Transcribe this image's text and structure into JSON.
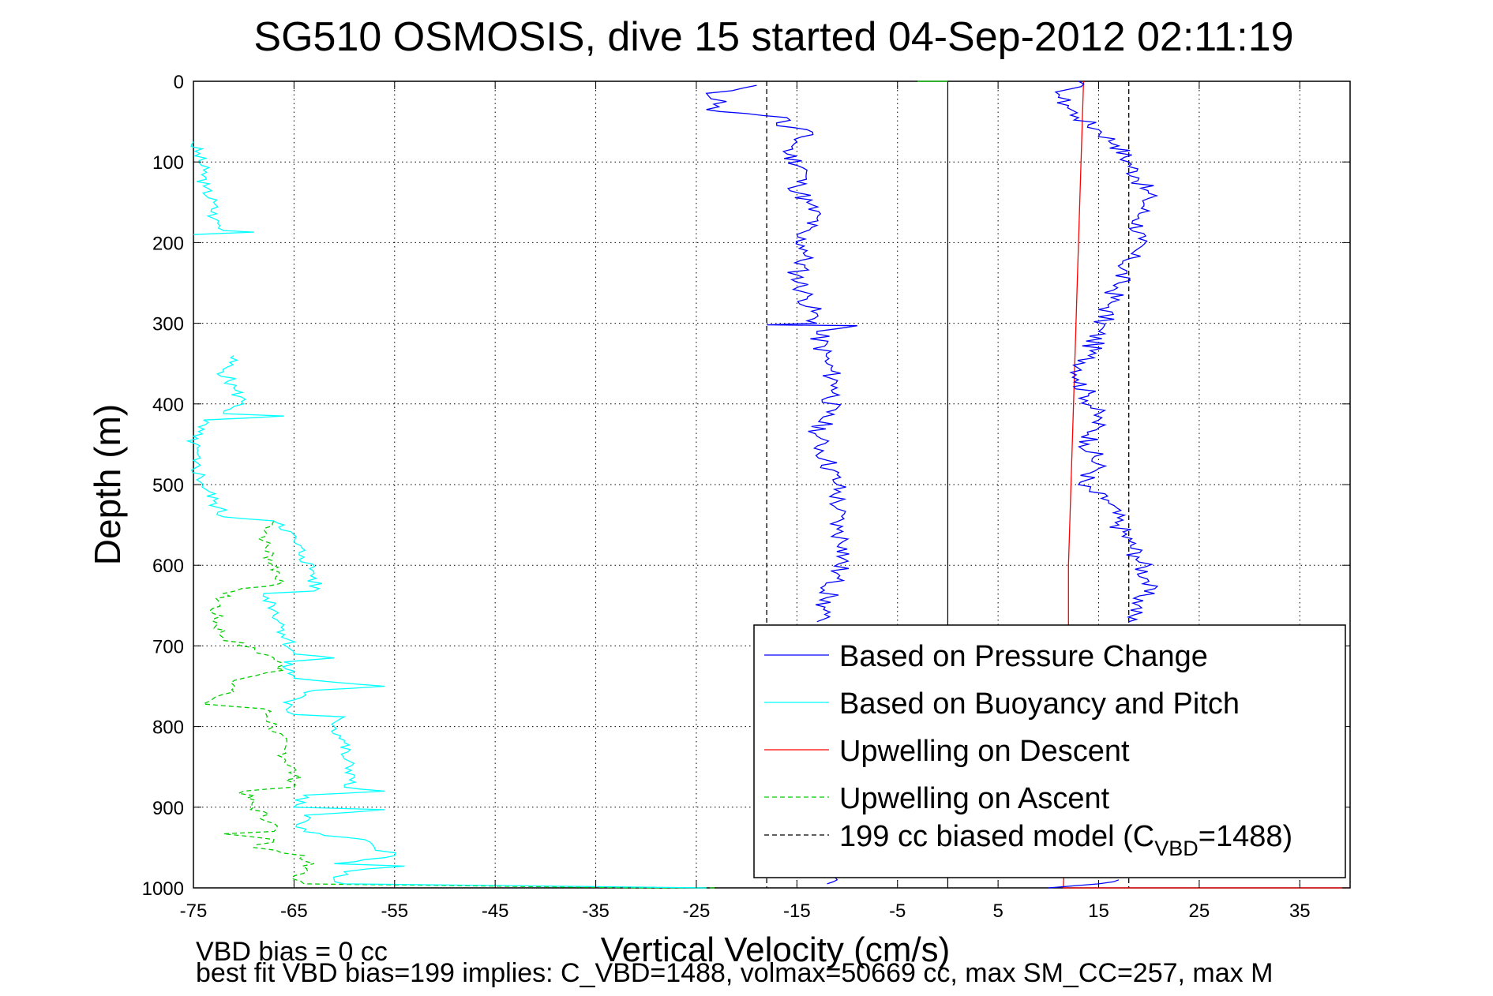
{
  "chart_data": {
    "type": "line",
    "title": "SG510 OSMOSIS, dive 15 started 04-Sep-2012 02:11:19",
    "xlabel": "Vertical Velocity (cm/s)",
    "ylabel": "Depth (m)",
    "xlim": [
      -75,
      40
    ],
    "ylim": [
      1000,
      0
    ],
    "y_reversed": true,
    "grid": true,
    "x_ticks": [
      -75,
      -65,
      -55,
      -45,
      -35,
      -25,
      -15,
      -5,
      5,
      15,
      25,
      35
    ],
    "y_ticks": [
      0,
      100,
      200,
      300,
      400,
      500,
      600,
      700,
      800,
      900,
      1000
    ],
    "reference_line_x": 0,
    "legend_position": "bottom-right",
    "footnotes": [
      "VBD bias = 0 cc",
      "best fit VBD bias=199 implies: C_VBD=1488, volmax=50669 cc, max SM_CC=257, max M"
    ],
    "series": [
      {
        "name": "Based on Pressure Change",
        "color": "#0000ff",
        "style": "solid",
        "points": [
          [
            -19,
            5
          ],
          [
            -24,
            15
          ],
          [
            -22,
            25
          ],
          [
            -24,
            35
          ],
          [
            -20,
            40
          ],
          [
            -16,
            45
          ],
          [
            -17,
            55
          ],
          [
            -14,
            60
          ],
          [
            -15,
            75
          ],
          [
            -16,
            90
          ],
          [
            -14,
            110
          ],
          [
            -15,
            130
          ],
          [
            -14,
            150
          ],
          [
            -13,
            170
          ],
          [
            -15,
            190
          ],
          [
            -14,
            210
          ],
          [
            -15,
            240
          ],
          [
            -14,
            270
          ],
          [
            -13,
            300
          ],
          [
            -18,
            302
          ],
          [
            -9,
            303
          ],
          [
            -13,
            310
          ],
          [
            -12,
            350
          ],
          [
            -11,
            380
          ],
          [
            -12,
            410
          ],
          [
            -13,
            440
          ],
          [
            -12,
            470
          ],
          [
            -11,
            500
          ],
          [
            -11,
            530
          ],
          [
            -11,
            555
          ],
          [
            -10,
            580
          ],
          [
            -11,
            610
          ],
          [
            -12,
            640
          ],
          [
            -13,
            670
          ],
          [
            -12,
            985
          ],
          [
            -11,
            990
          ],
          [
            -12,
            995
          ]
        ],
        "points_ascent": [
          [
            13,
            0
          ],
          [
            12,
            10
          ],
          [
            11,
            20
          ],
          [
            12,
            30
          ],
          [
            13,
            45
          ],
          [
            15,
            60
          ],
          [
            17,
            80
          ],
          [
            18,
            100
          ],
          [
            19,
            120
          ],
          [
            20,
            145
          ],
          [
            19,
            170
          ],
          [
            19,
            195
          ],
          [
            18,
            220
          ],
          [
            17,
            250
          ],
          [
            16,
            280
          ],
          [
            15,
            310
          ],
          [
            14,
            340
          ],
          [
            13,
            370
          ],
          [
            14,
            390
          ],
          [
            15,
            420
          ],
          [
            14,
            450
          ],
          [
            15,
            480
          ],
          [
            13,
            500
          ],
          [
            16,
            520
          ],
          [
            17,
            550
          ],
          [
            18,
            570
          ],
          [
            19,
            590
          ],
          [
            20,
            620
          ],
          [
            19,
            650
          ],
          [
            18,
            670
          ],
          [
            17,
            990
          ],
          [
            15,
            995
          ],
          [
            10,
            1000
          ]
        ]
      },
      {
        "name": "Based on Buoyancy and Pitch",
        "color": "#00ffff",
        "style": "solid",
        "points": [
          [
            -75,
            75
          ],
          [
            -74,
            110
          ],
          [
            -74,
            130
          ],
          [
            -73,
            150
          ],
          [
            -73,
            170
          ],
          [
            -72,
            185
          ],
          [
            -69,
            187
          ],
          [
            -75,
            190
          ],
          [
            -71,
            340
          ],
          [
            -72,
            360
          ],
          [
            -71,
            380
          ],
          [
            -70,
            400
          ],
          [
            -72,
            412
          ],
          [
            -66,
            415
          ],
          [
            -74,
            420
          ],
          [
            -75,
            440
          ],
          [
            -75,
            470
          ],
          [
            -74,
            500
          ],
          [
            -73,
            520
          ],
          [
            -72,
            540
          ],
          [
            -67,
            545
          ],
          [
            -66,
            550
          ],
          [
            -65,
            570
          ],
          [
            -64,
            590
          ],
          [
            -63,
            610
          ],
          [
            -63,
            632
          ],
          [
            -68,
            635
          ],
          [
            -67,
            650
          ],
          [
            -66,
            680
          ],
          [
            -65,
            710
          ],
          [
            -61,
            715
          ],
          [
            -66,
            720
          ],
          [
            -65,
            740
          ],
          [
            -61,
            745
          ],
          [
            -56,
            750
          ],
          [
            -63,
            755
          ],
          [
            -66,
            770
          ],
          [
            -65,
            785
          ],
          [
            -60,
            788
          ],
          [
            -61,
            800
          ],
          [
            -60,
            820
          ],
          [
            -60,
            840
          ],
          [
            -59,
            860
          ],
          [
            -60,
            875
          ],
          [
            -56,
            880
          ],
          [
            -64,
            885
          ],
          [
            -65,
            900
          ],
          [
            -56,
            903
          ],
          [
            -64,
            910
          ],
          [
            -64,
            930
          ],
          [
            -62,
            935
          ],
          [
            -58,
            940
          ],
          [
            -57,
            950
          ],
          [
            -55,
            960
          ],
          [
            -58,
            965
          ],
          [
            -61,
            970
          ],
          [
            -54,
            973
          ],
          [
            -60,
            980
          ],
          [
            -61,
            990
          ],
          [
            -60,
            995
          ],
          [
            -24,
            1000
          ]
        ]
      },
      {
        "name": "Upwelling on Descent",
        "color": "#ff0000",
        "style": "solid",
        "points": [
          [
            13.5,
            0
          ],
          [
            13,
            200
          ],
          [
            12.5,
            400
          ],
          [
            12,
            600
          ],
          [
            12,
            800
          ],
          [
            11.5,
            1000
          ],
          [
            40,
            1000
          ]
        ]
      },
      {
        "name": "Upwelling on Ascent",
        "color": "#00cc00",
        "style": "dashed",
        "points": [
          [
            -3,
            0
          ],
          [
            0,
            0
          ],
          [
            -67,
            545
          ],
          [
            -68,
            570
          ],
          [
            -67,
            600
          ],
          [
            -66,
            620
          ],
          [
            -72,
            635
          ],
          [
            -73,
            660
          ],
          [
            -72,
            690
          ],
          [
            -67,
            715
          ],
          [
            -66,
            730
          ],
          [
            -70,
            740
          ],
          [
            -72,
            760
          ],
          [
            -74,
            772
          ],
          [
            -68,
            778
          ],
          [
            -67,
            800
          ],
          [
            -66,
            830
          ],
          [
            -65,
            860
          ],
          [
            -65,
            875
          ],
          [
            -70,
            880
          ],
          [
            -69,
            900
          ],
          [
            -67,
            920
          ],
          [
            -67,
            930
          ],
          [
            -72,
            933
          ],
          [
            -67,
            940
          ],
          [
            -69,
            950
          ],
          [
            -64,
            960
          ],
          [
            -63,
            970
          ],
          [
            -65,
            985
          ],
          [
            -64,
            995
          ],
          [
            -30,
            1000
          ],
          [
            -23,
            1000
          ]
        ]
      },
      {
        "name": "199 cc biased model (C",
        "legend_subscript": "VBD",
        "legend_suffix": "=1488)",
        "color": "#000000",
        "style": "dashed",
        "points_descent": [
          [
            -18,
            0
          ],
          [
            -18,
            1000
          ]
        ],
        "points_ascent": [
          [
            18,
            0
          ],
          [
            18,
            1000
          ]
        ]
      }
    ]
  }
}
